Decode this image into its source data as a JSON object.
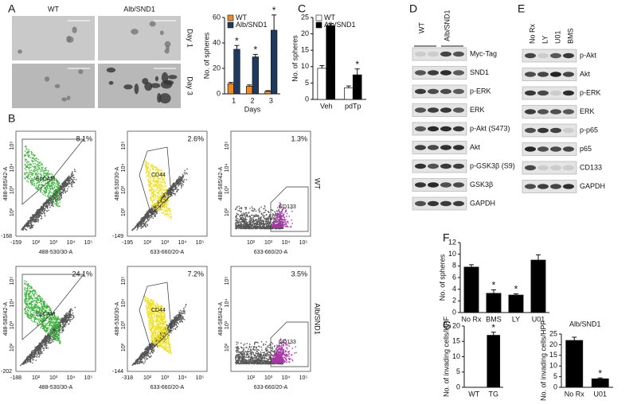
{
  "panels": [
    "A",
    "B",
    "C",
    "D",
    "E",
    "F",
    "G"
  ],
  "micro": {
    "columns": [
      "WT",
      "Alb/SND1"
    ],
    "rows": [
      "Day 1",
      "Day 3"
    ]
  },
  "flow": {
    "ticks": [
      "10²",
      "10³",
      "10⁴",
      "10⁵"
    ],
    "rows": [
      {
        "label": "WT",
        "plots": [
          {
            "percent": "8.1%",
            "gate": "EpCAM",
            "xlabel": "488-530/30-A",
            "ylabel": "488-585/42-A",
            "xmin": "-159",
            "ymin": "-168"
          },
          {
            "percent": "2.6%",
            "gate": "CD44",
            "xlabel": "633-660/20-A",
            "ylabel": "488-530/30-A",
            "xmin": "-195",
            "ymin": "-149"
          },
          {
            "percent": "1.3%",
            "gate": "CD133",
            "xlabel": "633-660/20-A",
            "ylabel": "488-585/42-A"
          }
        ]
      },
      {
        "label": "Alb/SND1",
        "plots": [
          {
            "percent": "24.1%",
            "gate": "EpCAM",
            "xlabel": "488-530/30-A",
            "ylabel": "488-585/42-A",
            "xmin": "-188",
            "ymin": "-202"
          },
          {
            "percent": "7.2%",
            "gate": "CD44",
            "xlabel": "633-660/20-A",
            "ylabel": "488-530/30-A",
            "xmin": "-318",
            "ymin": "-144"
          },
          {
            "percent": "3.5%",
            "gate": "CD133",
            "xlabel": "633-660/20-A",
            "ylabel": "488-585/42-A"
          }
        ]
      }
    ]
  },
  "blot_d": {
    "groups": [
      "WT",
      "Alb/SND1"
    ],
    "rows": [
      "Myc-Tag",
      "SND1",
      "p-ERK",
      "ERK",
      "p-Akt (S473)",
      "Akt",
      "p-GSK3β (S9)",
      "GSK3β",
      "GAPDH"
    ]
  },
  "blot_e": {
    "lanes": [
      "No Rx",
      "LY",
      "U01",
      "BMS"
    ],
    "rows": [
      "p-Akt",
      "Akt",
      "p-ERK",
      "ERK",
      "p-p65",
      "p65",
      "CD133",
      "GAPDH"
    ]
  },
  "chart_data": [
    {
      "type": "bar",
      "categories": [
        "1",
        "2",
        "3"
      ],
      "xlabel": "Days",
      "ylabel": "No. of spheres",
      "ylim": [
        0,
        60
      ],
      "yticks": [
        0,
        20,
        40,
        60
      ],
      "legend": "top-left",
      "series": [
        {
          "name": "WT",
          "color": "#f08a24",
          "values": [
            8,
            6,
            2
          ],
          "errors": [
            1,
            1,
            0.5
          ],
          "annotations": [
            null,
            null,
            null
          ]
        },
        {
          "name": "Alb/SND1",
          "color": "#1f3a5f",
          "values": [
            35,
            29,
            50
          ],
          "errors": [
            3,
            2,
            12
          ],
          "annotations": [
            "*",
            "*",
            "*"
          ]
        }
      ]
    },
    {
      "type": "bar",
      "categories": [
        "Veh",
        "pdTp"
      ],
      "ylabel": "No. of spheres",
      "ylim": [
        0,
        25
      ],
      "yticks": [
        0,
        5,
        10,
        15,
        20,
        25
      ],
      "legend": "top-left",
      "series": [
        {
          "name": "WT",
          "color": "#ffffff",
          "values": [
            9.5,
            3.5
          ],
          "errors": [
            0.8,
            0.6
          ],
          "annotations": [
            null,
            null
          ]
        },
        {
          "name": "Alb/SND1",
          "color": "#000000",
          "values": [
            22.5,
            7.5
          ],
          "errors": [
            0.6,
            1.8
          ],
          "annotations": [
            null,
            "*"
          ]
        }
      ]
    },
    {
      "type": "bar",
      "categories": [
        "No Rx",
        "BMS",
        "LY",
        "U01"
      ],
      "ylabel": "No. of spheres",
      "ylim": [
        0,
        12
      ],
      "yticks": [
        0,
        2,
        4,
        6,
        8,
        10,
        12
      ],
      "color": "#000000",
      "values": [
        7.8,
        3.3,
        3,
        9
      ],
      "errors": [
        0.4,
        0.6,
        0.2,
        0.9
      ],
      "annotations": [
        null,
        "*",
        "*",
        null
      ]
    },
    {
      "type": "bar",
      "categories": [
        "WT",
        "TG"
      ],
      "ylabel": "No. of invading cells/HPF",
      "ylim": [
        0,
        20
      ],
      "yticks": [
        0,
        5,
        10,
        15,
        20
      ],
      "color": "#000000",
      "values": [
        0,
        17
      ],
      "errors": [
        0,
        1
      ],
      "annotations": [
        null,
        "*"
      ]
    },
    {
      "type": "bar",
      "title": "Alb/SND1",
      "categories": [
        "No Rx",
        "U01"
      ],
      "ylabel": "No. of invading cells/HPF",
      "ylim": [
        0,
        25
      ],
      "yticks": [
        0,
        5,
        10,
        15,
        20,
        25
      ],
      "color": "#000000",
      "values": [
        22,
        4
      ],
      "errors": [
        1.5,
        0.4
      ],
      "annotations": [
        null,
        "*"
      ]
    }
  ]
}
